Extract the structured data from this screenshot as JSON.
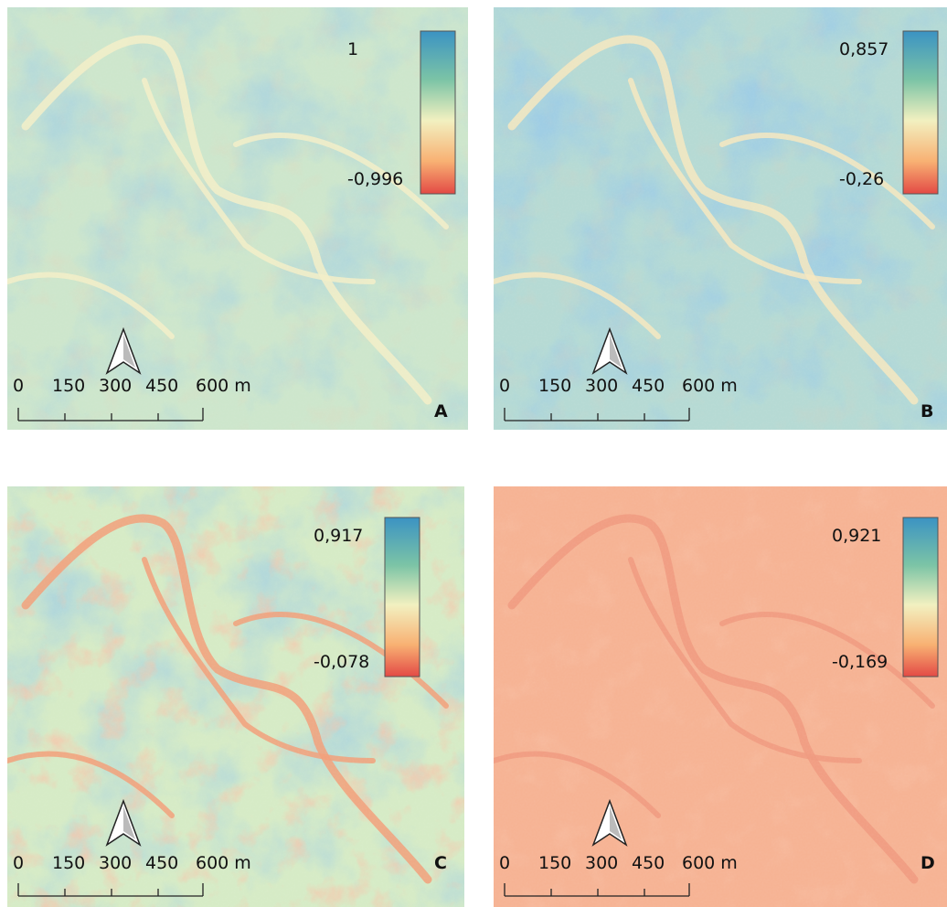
{
  "panels": [
    {
      "letter": "A",
      "legend_max": "1",
      "legend_min": "-0,996",
      "scale_labels": [
        "0",
        "150",
        "300",
        "450",
        "600 m"
      ]
    },
    {
      "letter": "B",
      "legend_max": "0,857",
      "legend_min": "-0,26",
      "scale_labels": [
        "0",
        "150",
        "300",
        "450",
        "600 m"
      ]
    },
    {
      "letter": "C",
      "legend_max": "0,917",
      "legend_min": "-0,078",
      "scale_labels": [
        "0",
        "150",
        "300",
        "450",
        "600 m"
      ]
    },
    {
      "letter": "D",
      "legend_max": "0,921",
      "legend_min": "-0,169",
      "scale_labels": [
        "0",
        "150",
        "300",
        "450",
        "600 m"
      ]
    }
  ]
}
